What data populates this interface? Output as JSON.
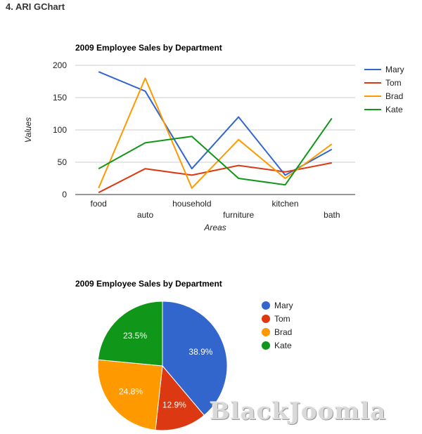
{
  "page": {
    "heading": "4. ARI GChart",
    "watermark": "BlackJoomla"
  },
  "chart_data": [
    {
      "type": "line",
      "title": "2009 Employee Sales by Department",
      "xlabel": "Areas",
      "ylabel": "Values",
      "categories": [
        "food",
        "auto",
        "household",
        "furniture",
        "kitchen",
        "bath"
      ],
      "ylim": [
        0,
        200
      ],
      "yticks": [
        0,
        50,
        100,
        150,
        200
      ],
      "grid": true,
      "legend": "right",
      "series": [
        {
          "name": "Mary",
          "color": "#3366cc",
          "values": [
            190,
            160,
            40,
            120,
            30,
            70
          ]
        },
        {
          "name": "Tom",
          "color": "#dc3912",
          "values": [
            3,
            40,
            30,
            45,
            35,
            49
          ]
        },
        {
          "name": "Brad",
          "color": "#ff9900",
          "values": [
            10,
            180,
            10,
            85,
            25,
            78
          ]
        },
        {
          "name": "Kate",
          "color": "#109618",
          "values": [
            40,
            80,
            90,
            25,
            15,
            118
          ]
        }
      ]
    },
    {
      "type": "pie",
      "title": "2009 Employee Sales by Department",
      "legend": "right",
      "slices": [
        {
          "name": "Mary",
          "value": 38.9,
          "label": "38.9%",
          "color": "#3366cc"
        },
        {
          "name": "Tom",
          "value": 12.9,
          "label": "12.9%",
          "color": "#dc3912"
        },
        {
          "name": "Brad",
          "value": 24.8,
          "label": "24.8%",
          "color": "#ff9900"
        },
        {
          "name": "Kate",
          "value": 23.5,
          "label": "23.5%",
          "color": "#109618"
        }
      ]
    }
  ]
}
